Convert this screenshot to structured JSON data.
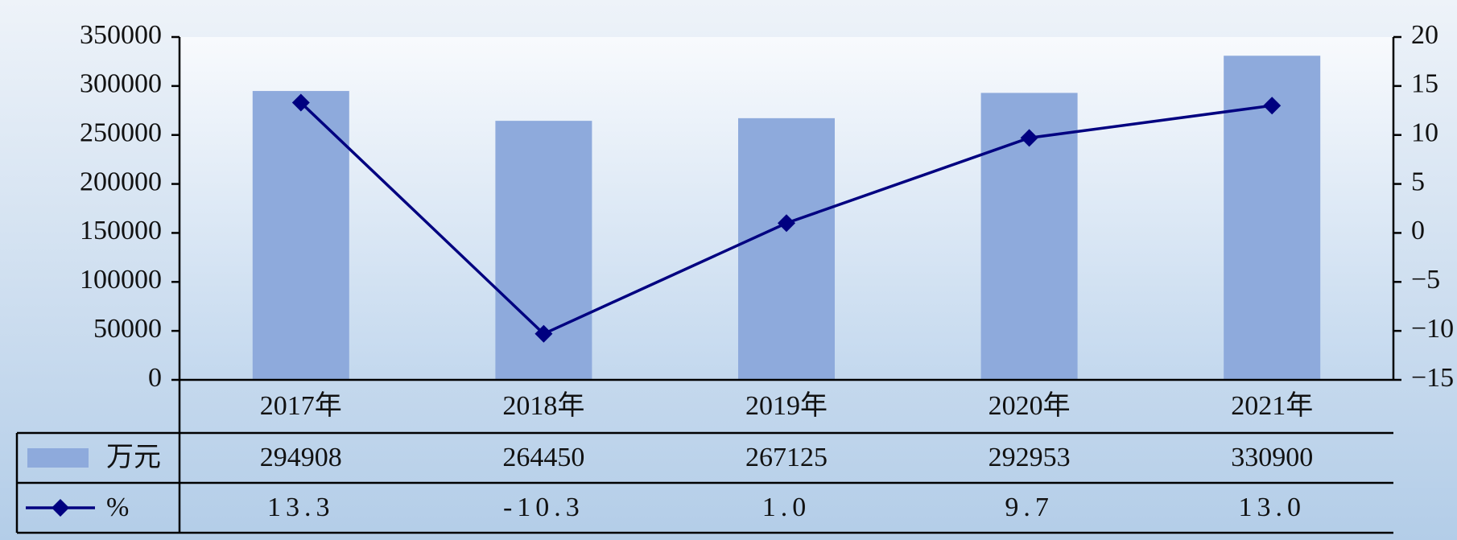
{
  "chart_data": {
    "type": "bar",
    "categories": [
      "2017年",
      "2018年",
      "2019年",
      "2020年",
      "2021年"
    ],
    "series": [
      {
        "name": "万元",
        "color": "#8eaadc",
        "values": [
          294908,
          264450,
          267125,
          292953,
          330900
        ]
      },
      {
        "name": "%",
        "type": "line",
        "axis": "y2",
        "color": "#000080",
        "values": [
          13.3,
          -10.3,
          1.0,
          9.7,
          13.0
        ],
        "value_labels": [
          "13.3",
          "-10.3",
          "1.0",
          "9.7",
          "13.0"
        ]
      }
    ],
    "ylim": [
      0,
      350000
    ],
    "yticks": [
      0,
      50000,
      100000,
      150000,
      200000,
      250000,
      300000,
      350000
    ],
    "y2lim": [
      -15,
      20
    ],
    "y2ticks": [
      {
        "value": -15,
        "label": "−15"
      },
      {
        "value": -10,
        "label": "−10"
      },
      {
        "value": -5,
        "label": "−5"
      },
      0,
      5,
      10,
      15,
      20
    ],
    "grid": false
  }
}
